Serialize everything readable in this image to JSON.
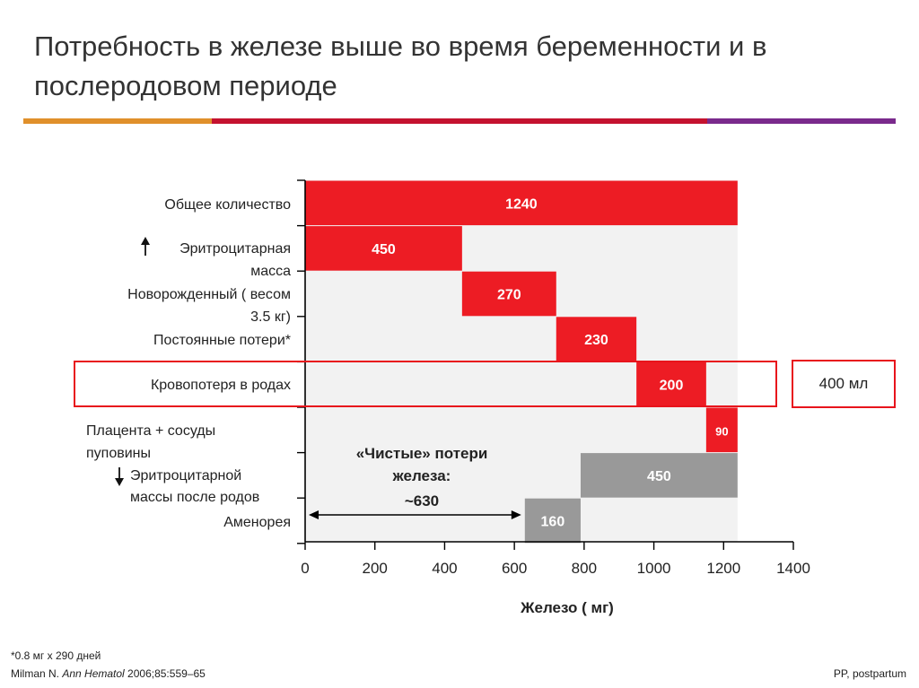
{
  "title": "Потребность в железе выше во время беременности и в послеродовом периоде",
  "colors": {
    "red": "#ed1c24",
    "gray": "#999999",
    "bg": "#f2f2f2",
    "orange": "#e0902b",
    "crimson": "#c4122f",
    "purple": "#7a2a8c"
  },
  "chart_data": {
    "type": "bar",
    "orientation": "horizontal-waterfall",
    "xlabel": "Железо ( мг)",
    "xlim": [
      0,
      1400
    ],
    "xticks": [
      0,
      200,
      400,
      600,
      800,
      1000,
      1200,
      1400
    ],
    "categories": [
      "Общее количество",
      "Эритроцитарная масса",
      "Новорожденный ( весом 3.5 кг)",
      "Постоянные потери*",
      "Кровопотеря в родах",
      "Плацента + сосуды пуповины",
      "Эритроцитарной массы после родов",
      "Аменорея"
    ],
    "bars": [
      {
        "category": "Общее количество",
        "start": 0,
        "end": 1240,
        "value": "1240",
        "color": "red"
      },
      {
        "category": "Эритроцитарная масса",
        "start": 0,
        "end": 450,
        "value": "450",
        "color": "red"
      },
      {
        "category": "Новорожденный ( весом 3.5 кг)",
        "start": 450,
        "end": 720,
        "value": "270",
        "color": "red"
      },
      {
        "category": "Постоянные потери*",
        "start": 720,
        "end": 950,
        "value": "230",
        "color": "red"
      },
      {
        "category": "Кровопотеря в родах",
        "start": 950,
        "end": 1150,
        "value": "200",
        "color": "red"
      },
      {
        "category": "Плацента + сосуды пуповины",
        "start": 1150,
        "end": 1240,
        "value": "90",
        "color": "red"
      },
      {
        "category": "Эритроцитарной массы после родов",
        "start": 790,
        "end": 1240,
        "value": "450",
        "color": "gray"
      },
      {
        "category": "Аменорея",
        "start": 630,
        "end": 790,
        "value": "160",
        "color": "gray"
      }
    ],
    "annotations": {
      "net_loss_line1": "«Чистые» потери",
      "net_loss_line2": "железа:",
      "net_loss_value": "~630",
      "net_loss_range": [
        0,
        630
      ],
      "blood_loss_ml": "400 мл"
    }
  },
  "ylabels": {
    "total": "Общее количество",
    "rbc_up": "Эритроцитарная",
    "rbc_up_2": "масса",
    "newborn_1": "Новорожденный ( весом",
    "newborn_2": "3.5 кг)",
    "losses": "Постоянные потери*",
    "blood": "Кровопотеря в родах",
    "placenta_1": "Плацента + сосуды",
    "placenta_2": "пуповины",
    "rbc_down_1": "Эритроцитарной",
    "rbc_down_2": "массы после родов",
    "amen": "Аменорея"
  },
  "footnotes": {
    "asterisk": "*0.8 мг x 290 дней",
    "ref_author": "Milman N. ",
    "ref_journal": "Ann Hematol",
    "ref_rest": " 2006;85:559–65",
    "abbrev": "PP, postpartum"
  }
}
